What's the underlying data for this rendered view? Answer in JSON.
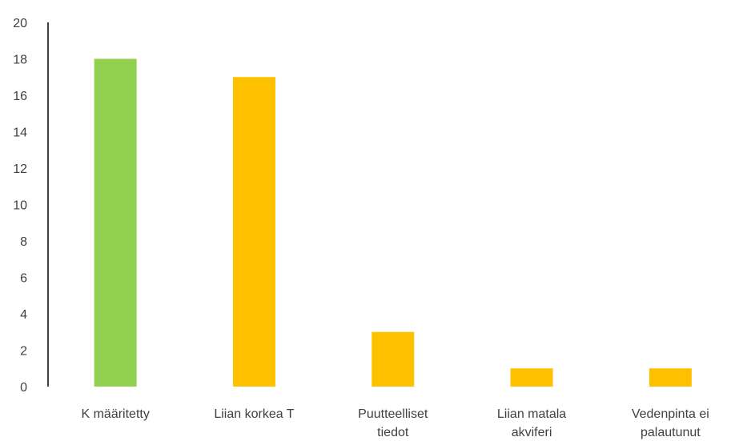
{
  "chart_data": {
    "type": "bar",
    "categories": [
      "K määritetty",
      "Liian korkea T",
      "Puutteelliset tiedot",
      "Liian matala akviferi",
      "Vedenpinta ei palautunut"
    ],
    "values": [
      18,
      17,
      3,
      1,
      1
    ],
    "colors": [
      "#92d050",
      "#ffc000",
      "#ffc000",
      "#ffc000",
      "#ffc000"
    ],
    "ylim": [
      0,
      20
    ],
    "yticks": [
      0,
      2,
      4,
      6,
      8,
      10,
      12,
      14,
      16,
      18,
      20
    ],
    "grid": false
  }
}
